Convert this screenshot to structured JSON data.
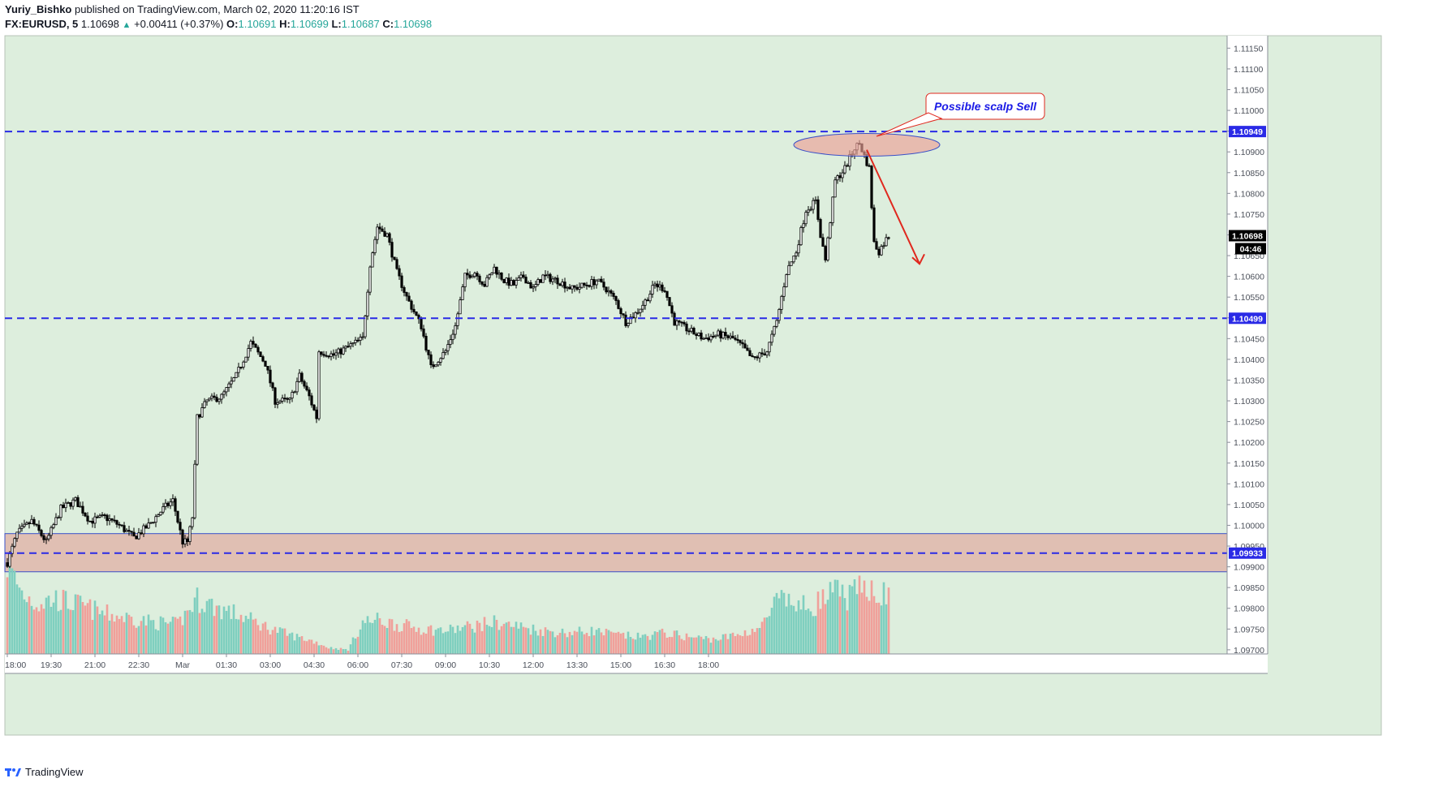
{
  "header": {
    "author": "Yuriy_Bishko",
    "published_text": "published on TradingView.com, March 02, 2020 11:20:16 IST",
    "symbol": "FX:EURUSD, 5",
    "last_price": "1.10698",
    "change_arrow": "▲",
    "change": "+0.00411 (+0.37%)",
    "open_label": "O:",
    "open": "1.10691",
    "high_label": "H:",
    "high": "1.10699",
    "low_label": "L:",
    "low": "1.10687",
    "close_label": "C:",
    "close": "1.10698"
  },
  "footer": {
    "brand": "TradingView"
  },
  "colors": {
    "chart_bg": "#ddeedd",
    "level_line": "#2a2ae6",
    "zone_fill": "#e0bfb3",
    "up_volume": "#7fcfbf",
    "down_volume": "#f0a09a",
    "arrow": "#e0281e",
    "annotation_text": "#1a1ae6",
    "annotation_border": "#e0281e",
    "price_badge": "#000000"
  },
  "chart_data": {
    "type": "candlestick",
    "symbol": "FX:EURUSD",
    "timeframe": "5",
    "ylim": [
      1.0969,
      1.1118
    ],
    "y_ticks": [
      "1.11150",
      "1.11100",
      "1.11050",
      "1.11000",
      "1.10950",
      "1.10900",
      "1.10850",
      "1.10800",
      "1.10750",
      "1.10700",
      "1.10650",
      "1.10600",
      "1.10550",
      "1.10500",
      "1.10450",
      "1.10400",
      "1.10350",
      "1.10300",
      "1.10250",
      "1.10200",
      "1.10150",
      "1.10100",
      "1.10050",
      "1.10000",
      "1.09950",
      "1.09900",
      "1.09850",
      "1.09800",
      "1.09750",
      "1.09700"
    ],
    "x_ticks": [
      "18:00",
      "19:30",
      "21:00",
      "22:30",
      "Mar",
      "01:30",
      "03:00",
      "04:30",
      "06:00",
      "07:30",
      "09:00",
      "10:30",
      "12:00",
      "13:30",
      "15:00",
      "16:30",
      "18:00"
    ],
    "levels": [
      {
        "price": 1.10949,
        "label": "1.10949"
      },
      {
        "price": 1.10499,
        "label": "1.10499"
      },
      {
        "price": 1.09933,
        "label": "1.09933"
      }
    ],
    "zone": {
      "from": 1.09888,
      "to": 1.0998
    },
    "last_price_label": "1.10698",
    "countdown": "04:46",
    "annotation": "Possible scalp Sell",
    "series": [
      {
        "name": "close",
        "anchors": [
          [
            0,
            1.0991
          ],
          [
            4,
            1.0998
          ],
          [
            10,
            1.1001
          ],
          [
            16,
            1.0996
          ],
          [
            22,
            1.1004
          ],
          [
            28,
            1.1006
          ],
          [
            34,
            1.1001
          ],
          [
            40,
            1.1002
          ],
          [
            46,
            1.1
          ],
          [
            52,
            1.0997
          ],
          [
            58,
            1.1
          ],
          [
            64,
            1.1004
          ],
          [
            68,
            1.1006
          ],
          [
            70,
            1.1001
          ],
          [
            72,
            1.0996
          ],
          [
            74,
            1.0996
          ],
          [
            76,
            1.1002
          ],
          [
            78,
            1.1026
          ],
          [
            82,
            1.103
          ],
          [
            88,
            1.1031
          ],
          [
            94,
            1.1036
          ],
          [
            100,
            1.1044
          ],
          [
            106,
            1.1039
          ],
          [
            110,
            1.103
          ],
          [
            116,
            1.103
          ],
          [
            120,
            1.1036
          ],
          [
            124,
            1.1031
          ],
          [
            127,
            1.1026
          ],
          [
            128,
            1.1042
          ],
          [
            134,
            1.1041
          ],
          [
            140,
            1.1043
          ],
          [
            146,
            1.1045
          ],
          [
            149,
            1.1063
          ],
          [
            152,
            1.1072
          ],
          [
            156,
            1.107
          ],
          [
            160,
            1.1061
          ],
          [
            164,
            1.1055
          ],
          [
            170,
            1.1048
          ],
          [
            174,
            1.1038
          ],
          [
            180,
            1.1042
          ],
          [
            184,
            1.1048
          ],
          [
            188,
            1.106
          ],
          [
            192,
            1.1061
          ],
          [
            196,
            1.1058
          ],
          [
            200,
            1.1062
          ],
          [
            204,
            1.1059
          ],
          [
            208,
            1.1058
          ],
          [
            212,
            1.106
          ],
          [
            216,
            1.1057
          ],
          [
            220,
            1.106
          ],
          [
            226,
            1.1059
          ],
          [
            232,
            1.1057
          ],
          [
            238,
            1.1058
          ],
          [
            242,
            1.1059
          ],
          [
            246,
            1.1057
          ],
          [
            250,
            1.1054
          ],
          [
            254,
            1.1049
          ],
          [
            258,
            1.1051
          ],
          [
            262,
            1.1054
          ],
          [
            266,
            1.1058
          ],
          [
            270,
            1.1057
          ],
          [
            274,
            1.1049
          ],
          [
            280,
            1.1047
          ],
          [
            286,
            1.1045
          ],
          [
            292,
            1.1046
          ],
          [
            298,
            1.1045
          ],
          [
            302,
            1.1043
          ],
          [
            306,
            1.104
          ],
          [
            312,
            1.1042
          ],
          [
            316,
            1.1049
          ],
          [
            320,
            1.1061
          ],
          [
            324,
            1.1066
          ],
          [
            328,
            1.1076
          ],
          [
            332,
            1.1078
          ],
          [
            334,
            1.107
          ],
          [
            336,
            1.1064
          ],
          [
            340,
            1.1083
          ],
          [
            344,
            1.1086
          ],
          [
            348,
            1.1091
          ],
          [
            350,
            1.1092
          ],
          [
            352,
            1.1089
          ],
          [
            354,
            1.1086
          ],
          [
            356,
            1.1068
          ],
          [
            358,
            1.1066
          ],
          [
            360,
            1.1068
          ],
          [
            362,
            1.10698
          ]
        ]
      },
      {
        "name": "volume",
        "anchors": [
          [
            0,
            0.85
          ],
          [
            6,
            0.58
          ],
          [
            12,
            0.48
          ],
          [
            20,
            0.52
          ],
          [
            30,
            0.46
          ],
          [
            40,
            0.38
          ],
          [
            50,
            0.34
          ],
          [
            60,
            0.3
          ],
          [
            70,
            0.28
          ],
          [
            78,
            0.52
          ],
          [
            86,
            0.44
          ],
          [
            96,
            0.36
          ],
          [
            106,
            0.26
          ],
          [
            116,
            0.18
          ],
          [
            126,
            0.12
          ],
          [
            132,
            0.06
          ],
          [
            140,
            0.04
          ],
          [
            146,
            0.3
          ],
          [
            152,
            0.32
          ],
          [
            160,
            0.28
          ],
          [
            170,
            0.24
          ],
          [
            180,
            0.22
          ],
          [
            190,
            0.26
          ],
          [
            200,
            0.3
          ],
          [
            210,
            0.26
          ],
          [
            220,
            0.22
          ],
          [
            230,
            0.2
          ],
          [
            240,
            0.22
          ],
          [
            250,
            0.18
          ],
          [
            260,
            0.16
          ],
          [
            270,
            0.2
          ],
          [
            280,
            0.16
          ],
          [
            290,
            0.14
          ],
          [
            300,
            0.18
          ],
          [
            310,
            0.26
          ],
          [
            316,
            0.5
          ],
          [
            322,
            0.48
          ],
          [
            328,
            0.44
          ],
          [
            334,
            0.5
          ],
          [
            340,
            0.58
          ],
          [
            346,
            0.54
          ],
          [
            350,
            0.6
          ],
          [
            354,
            0.66
          ],
          [
            358,
            0.58
          ],
          [
            362,
            0.54
          ]
        ]
      }
    ]
  }
}
